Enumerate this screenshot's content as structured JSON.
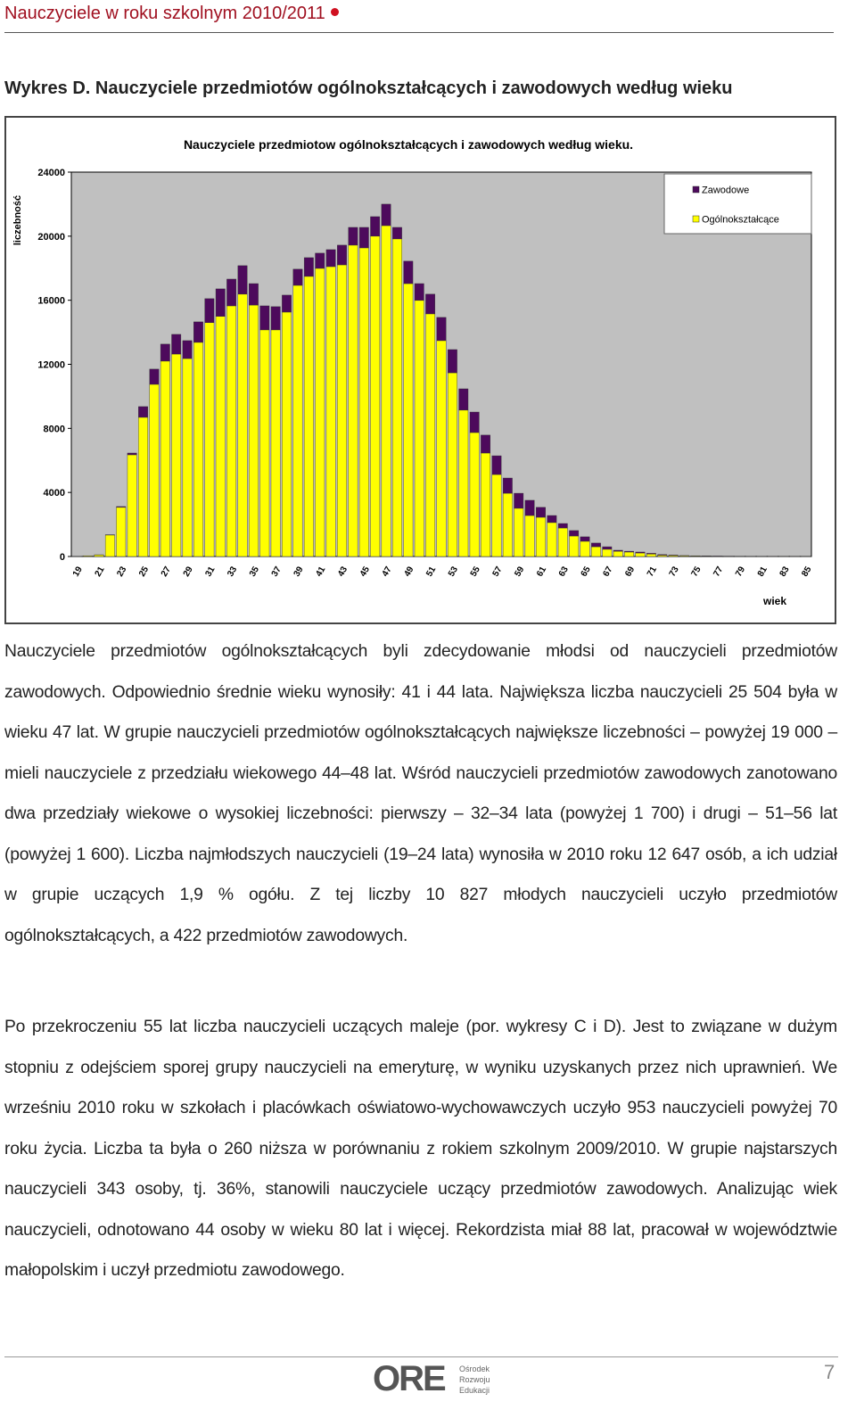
{
  "header": {
    "title": "Nauczyciele w roku szkolnym 2010/2011"
  },
  "heading": "Wykres D. Nauczyciele przedmiotów ogólnokształcących i zawodowych według wieku",
  "chart_data": {
    "type": "stacked-bar",
    "title": "Nauczyciele przedmiotow ogólnokształcących i zawodowych według wieku.",
    "x_label": "wiek",
    "y_label": "liczebność",
    "categories": [
      "19",
      null,
      "21",
      null,
      "23",
      null,
      "25",
      null,
      "27",
      null,
      "29",
      null,
      "31",
      null,
      "33",
      null,
      "35",
      null,
      "37",
      null,
      "39",
      null,
      "41",
      null,
      "43",
      null,
      "45",
      null,
      "47",
      null,
      "49",
      null,
      "51",
      null,
      "53",
      null,
      "55",
      null,
      "57",
      null,
      "59",
      null,
      "61",
      null,
      "63",
      null,
      "65",
      null,
      "67",
      null,
      "69",
      null,
      "71",
      null,
      "73",
      null,
      "75",
      null,
      "77",
      null,
      "79",
      null,
      "81",
      null,
      "83",
      null,
      "85"
    ],
    "series": [
      {
        "name": "Ogólnokształcące",
        "color": "#ffff00",
        "values": [
          10,
          40,
          100,
          1340,
          3070,
          6350,
          8690,
          10750,
          12200,
          12640,
          12360,
          13370,
          14600,
          14990,
          15650,
          16380,
          15700,
          14150,
          14150,
          15260,
          16930,
          17490,
          17990,
          18100,
          18210,
          19440,
          19270,
          20000,
          20660,
          19830,
          17040,
          15990,
          15150,
          13480,
          11470,
          9140,
          7740,
          6460,
          5120,
          3950,
          3010,
          2560,
          2450,
          2120,
          1780,
          1280,
          950,
          610,
          450,
          330,
          280,
          220,
          150,
          80,
          60,
          40,
          30,
          25,
          20,
          15,
          12,
          10,
          8,
          6,
          5,
          4,
          3
        ]
      },
      {
        "name": "Zawodowe",
        "color": "#4d0a5c",
        "values": [
          2,
          5,
          10,
          20,
          50,
          110,
          670,
          950,
          1060,
          1230,
          1120,
          1280,
          1500,
          1720,
          1670,
          1780,
          1340,
          1500,
          1450,
          1060,
          1010,
          1170,
          950,
          1060,
          1230,
          1110,
          1280,
          1220,
          1340,
          720,
          1400,
          1050,
          1230,
          1450,
          1450,
          1330,
          1280,
          1120,
          1170,
          950,
          940,
          950,
          620,
          440,
          280,
          340,
          280,
          230,
          160,
          60,
          50,
          60,
          50,
          40,
          30,
          20,
          15,
          12,
          10,
          8,
          6,
          5,
          4,
          3,
          2,
          2,
          1
        ]
      }
    ],
    "ylim": [
      0,
      24000
    ],
    "yticks": [
      0,
      4000,
      8000,
      12000,
      16000,
      20000,
      24000
    ],
    "grid": false,
    "legend": "top-right",
    "legend_order": [
      1,
      0
    ],
    "background": "#c0c0c0"
  },
  "paragraphs": [
    "Nauczyciele przedmiotów ogólnokształcących byli zdecydowanie młodsi od nauczycieli przedmiotów zawodowych. Odpowiednio średnie wieku wynosiły: 41 i 44 lata. Największa liczba nauczycieli 25 504 była w wieku 47 lat. W grupie nauczycieli przedmiotów ogólnokształcących największe liczebności – powyżej 19 000 – mieli nauczyciele z przedziału wiekowego 44–48 lat. Wśród nauczycieli przedmiotów zawodowych zanotowano dwa przedziały wiekowe o wysokiej liczebności: pierwszy – 32–34 lata (powyżej 1 700) i drugi – 51–56 lat (powyżej 1 600). Liczba najmłodszych nauczycieli (19–24 lata) wynosiła w 2010 roku 12 647 osób, a ich udział w grupie uczących 1,9 % ogółu. Z tej liczby 10 827 młodych nauczycieli uczyło przedmiotów ogólnokształcących, a 422 przedmiotów zawodowych.",
    "Po przekroczeniu 55 lat liczba nauczycieli uczących maleje (por. wykresy C i D). Jest to związane w dużym stopniu z odejściem sporej grupy nauczycieli na emeryturę, w wyniku uzyskanych przez nich uprawnień. We wrześniu 2010 roku w szkołach i placówkach oświatowo-wychowawczych uczyło 953 nauczycieli powyżej 70 roku życia. Liczba ta była o 260 niższa w porównaniu z rokiem szkolnym 2009/2010. W grupie najstarszych nauczycieli 343 osoby, tj. 36%, stanowili nauczyciele uczący przedmiotów zawodowych. Analizując wiek nauczycieli, odnotowano 44 osoby w wieku 80 lat i więcej. Rekordzista miał 88 lat, pracował w województwie małopolskim i uczył przedmiotu zawodowego."
  ],
  "footer": {
    "logo": "ORE",
    "org": [
      "Ośrodek",
      "Rozwoju",
      "Edukacji"
    ],
    "page": "7"
  }
}
